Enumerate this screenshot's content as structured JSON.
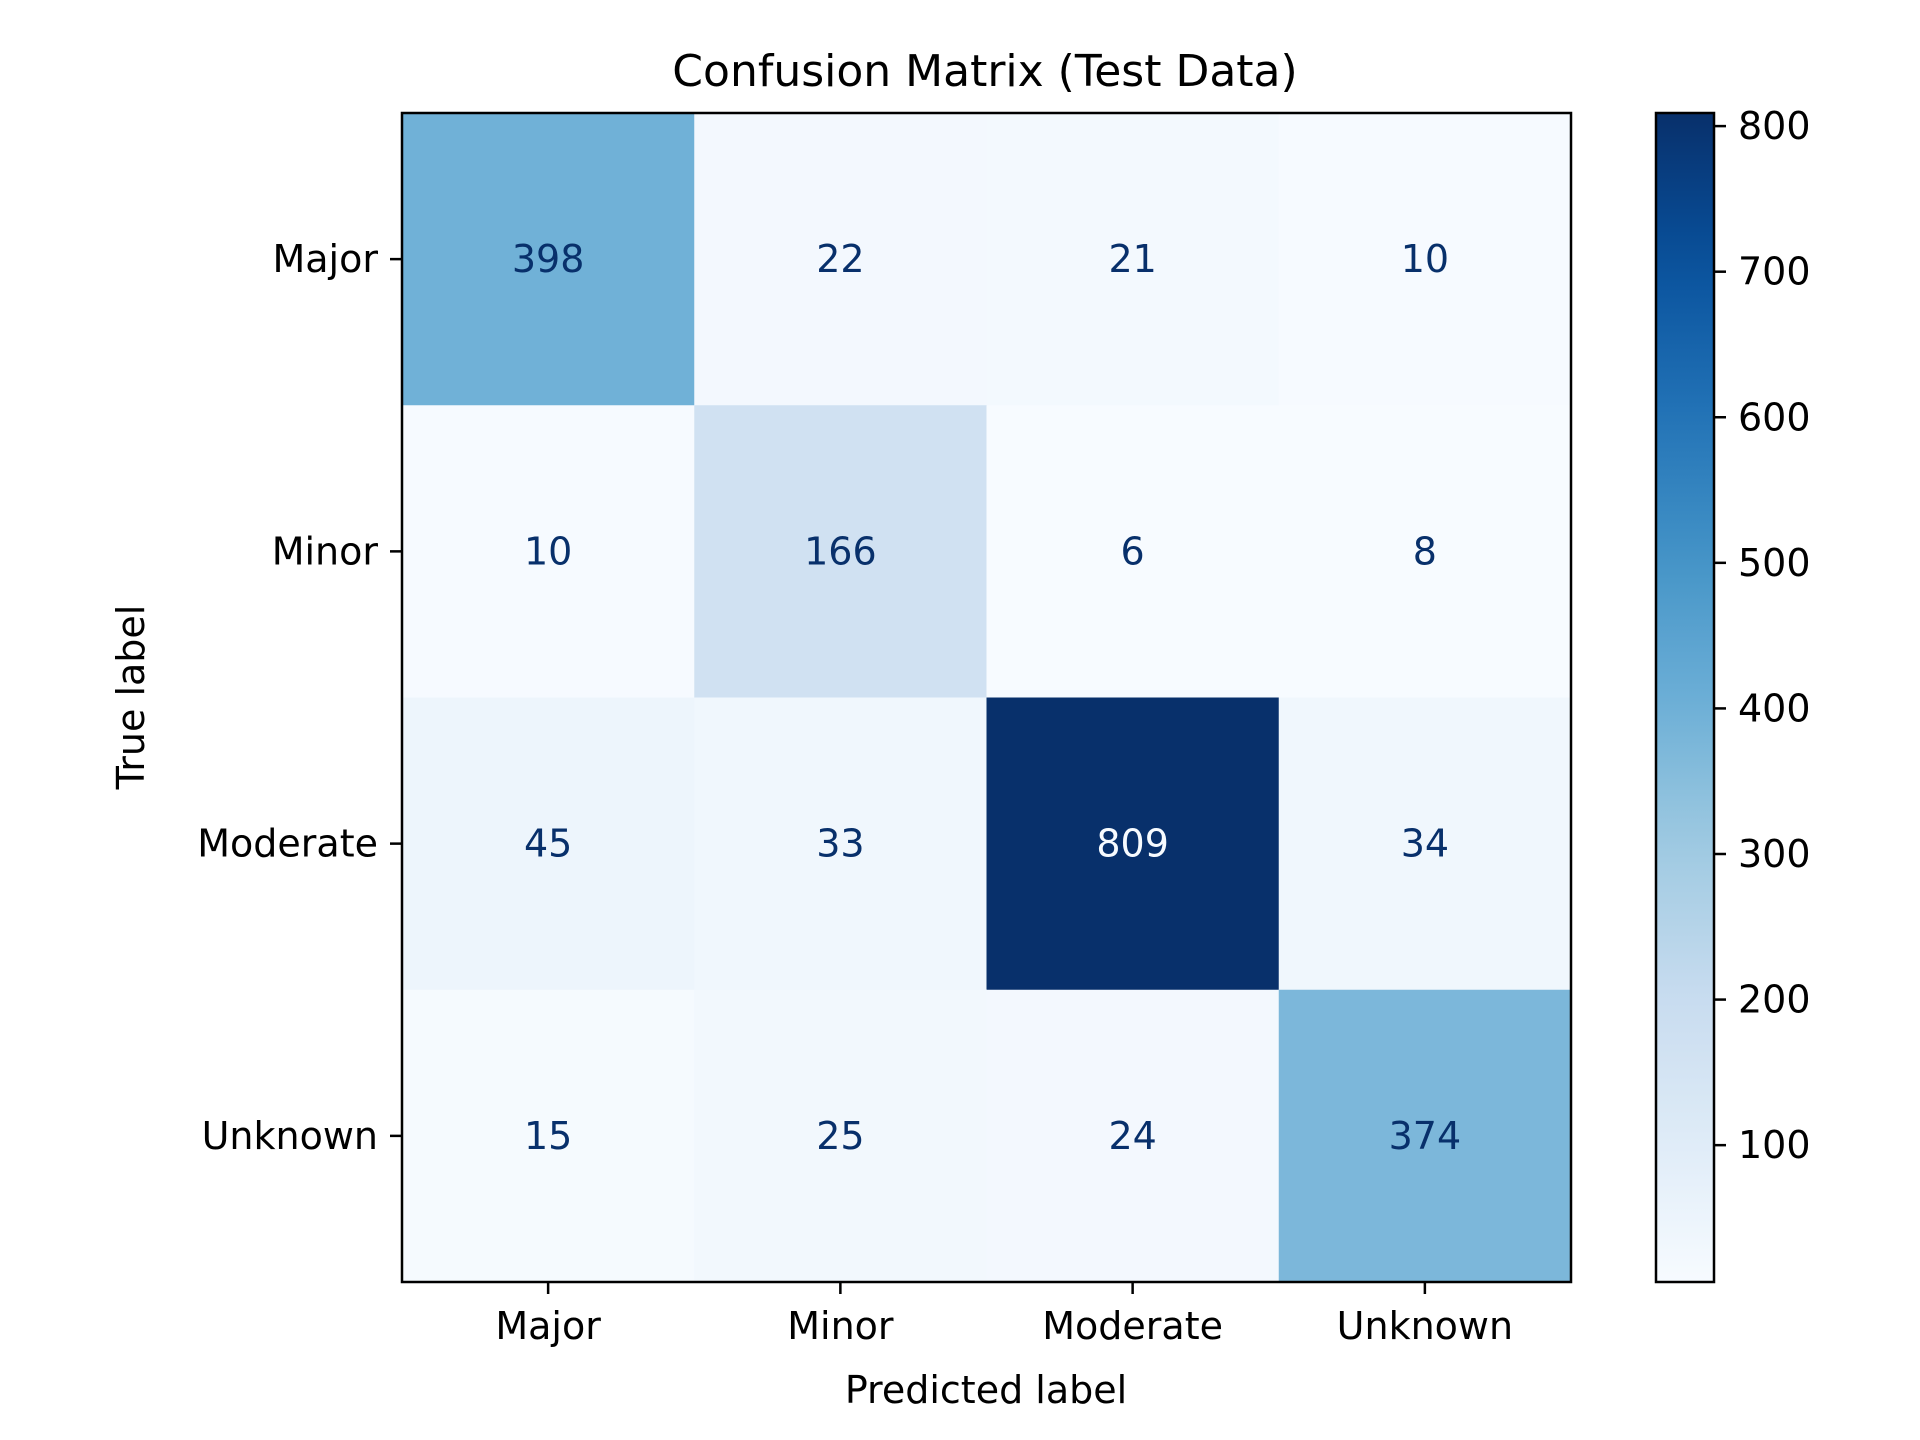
{
  "chart_data": {
    "type": "heatmap",
    "title": "Confusion Matrix (Test Data)",
    "xlabel": "Predicted label",
    "ylabel": "True label",
    "x_categories": [
      "Major",
      "Minor",
      "Moderate",
      "Unknown"
    ],
    "y_categories": [
      "Major",
      "Minor",
      "Moderate",
      "Unknown"
    ],
    "values": [
      [
        398,
        22,
        21,
        10
      ],
      [
        10,
        166,
        6,
        8
      ],
      [
        45,
        33,
        809,
        34
      ],
      [
        15,
        25,
        24,
        374
      ]
    ],
    "colormap": "Blues",
    "colorbar": {
      "range": [
        6,
        809
      ],
      "ticks": [
        "100",
        "200",
        "300",
        "400",
        "500",
        "600",
        "700",
        "800"
      ]
    },
    "colors": {
      "low": "#f7fbff",
      "high": "#08306b",
      "text_dark": "#08306b",
      "text_light": "#f7fbff"
    }
  }
}
